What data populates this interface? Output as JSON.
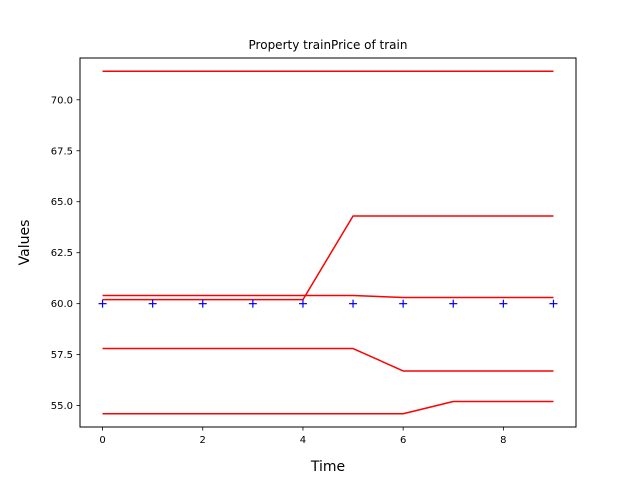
{
  "chart_data": {
    "type": "line",
    "title": "Property trainPrice of train",
    "xlabel": "Time",
    "ylabel": "Values",
    "xlim": [
      -0.45,
      9.45
    ],
    "ylim": [
      53.95,
      72.05
    ],
    "xticks": [
      0,
      2,
      4,
      6,
      8
    ],
    "xtick_labels": [
      "0",
      "2",
      "4",
      "6",
      "8"
    ],
    "yticks": [
      55.0,
      57.5,
      60.0,
      62.5,
      65.0,
      67.5,
      70.0
    ],
    "ytick_labels": [
      "55.0",
      "57.5",
      "60.0",
      "62.5",
      "65.0",
      "67.5",
      "70.0"
    ],
    "grid": false,
    "legend": null,
    "x": [
      0,
      1,
      2,
      3,
      4,
      5,
      6,
      7,
      8,
      9
    ],
    "series": [
      {
        "style": "line",
        "color": "#ff0000",
        "values": [
          71.4,
          71.4,
          71.4,
          71.4,
          71.4,
          71.4,
          71.4,
          71.4,
          71.4,
          71.4
        ]
      },
      {
        "style": "line",
        "color": "#ff0000",
        "values": [
          60.2,
          60.2,
          60.2,
          60.2,
          60.2,
          64.3,
          64.3,
          64.3,
          64.3,
          64.3
        ]
      },
      {
        "style": "line",
        "color": "#ff0000",
        "values": [
          60.4,
          60.4,
          60.4,
          60.4,
          60.4,
          60.4,
          60.3,
          60.3,
          60.3,
          60.3
        ]
      },
      {
        "style": "line",
        "color": "#ff0000",
        "values": [
          57.8,
          57.8,
          57.8,
          57.8,
          57.8,
          57.8,
          56.7,
          56.7,
          56.7,
          56.7
        ]
      },
      {
        "style": "line",
        "color": "#ff0000",
        "values": [
          54.6,
          54.6,
          54.6,
          54.6,
          54.6,
          54.6,
          54.6,
          55.2,
          55.2,
          55.2
        ]
      },
      {
        "style": "marker",
        "marker": "+",
        "color": "#0000ff",
        "values": [
          60.0,
          60.0,
          60.0,
          60.0,
          60.0,
          60.0,
          60.0,
          60.0,
          60.0,
          60.0
        ]
      }
    ]
  }
}
